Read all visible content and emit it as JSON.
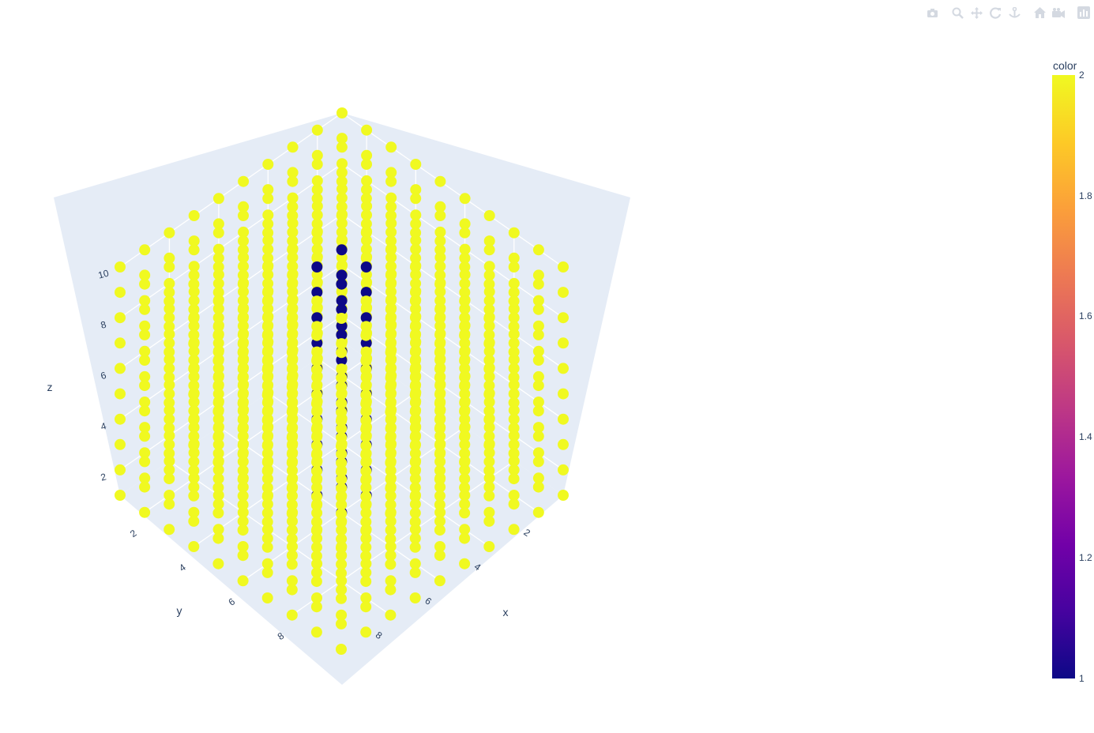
{
  "chart_data": {
    "type": "scatter",
    "subtype": "scatter3d",
    "grid": {
      "x": [
        1,
        2,
        3,
        4,
        5,
        6,
        7,
        8,
        9,
        10
      ],
      "y": [
        1,
        2,
        3,
        4,
        5,
        6,
        7,
        8,
        9,
        10
      ],
      "z": [
        1,
        2,
        3,
        4,
        5,
        6,
        7,
        8,
        9,
        10
      ]
    },
    "color_rule": "color = 1 where x = y = 5 or 6 (central column); 2 elsewhere",
    "axes": {
      "x": {
        "title": "x",
        "range": [
          1,
          10
        ],
        "ticks": [
          2,
          4,
          6,
          8
        ]
      },
      "y": {
        "title": "y",
        "range": [
          1,
          10
        ],
        "ticks": [
          2,
          4,
          6,
          8
        ]
      },
      "z": {
        "title": "z",
        "range": [
          1,
          10
        ],
        "ticks": [
          2,
          4,
          6,
          8,
          10
        ]
      }
    },
    "scene_background": "#e5ecf6",
    "gridlines": true,
    "colorscale": [
      "#0d0887",
      "#46039f",
      "#7201a8",
      "#9c179e",
      "#bd3786",
      "#d8576b",
      "#ed7953",
      "#fb9f3a",
      "#fdca26",
      "#f0f921"
    ],
    "low_color": "#0d0887",
    "high_color": "#f0f921",
    "colorbar": {
      "title": "color",
      "range": [
        1,
        2
      ],
      "ticks": [
        "1",
        "1.2",
        "1.4",
        "1.6",
        "1.8",
        "2"
      ]
    }
  },
  "modebar": {
    "icons": [
      "camera-icon",
      "zoom-icon",
      "pan-icon",
      "orbit-rotation-icon",
      "turntable-rotation-icon",
      "home-icon",
      "camera-reset-icon",
      "plotly-logo-icon"
    ]
  }
}
